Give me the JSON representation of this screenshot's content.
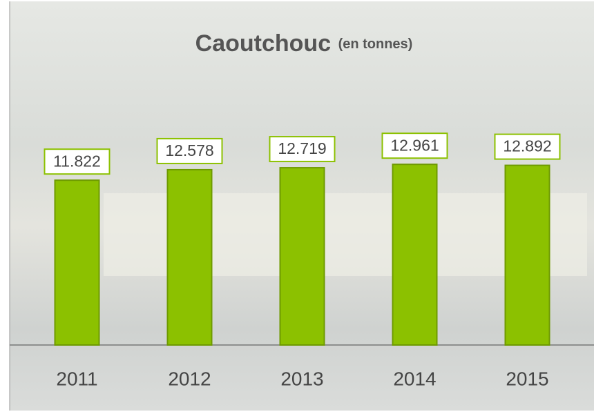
{
  "chart_data": {
    "type": "bar",
    "title": "Caoutchouc",
    "subtitle": "(en tonnes)",
    "categories": [
      "2011",
      "2012",
      "2013",
      "2014",
      "2015"
    ],
    "values": [
      11822,
      12578,
      12719,
      12961,
      12892
    ],
    "value_labels": [
      "11.822",
      "12.578",
      "12.719",
      "12.961",
      "12.892"
    ],
    "color": "#8cc100",
    "ylim": [
      0,
      15000
    ]
  }
}
